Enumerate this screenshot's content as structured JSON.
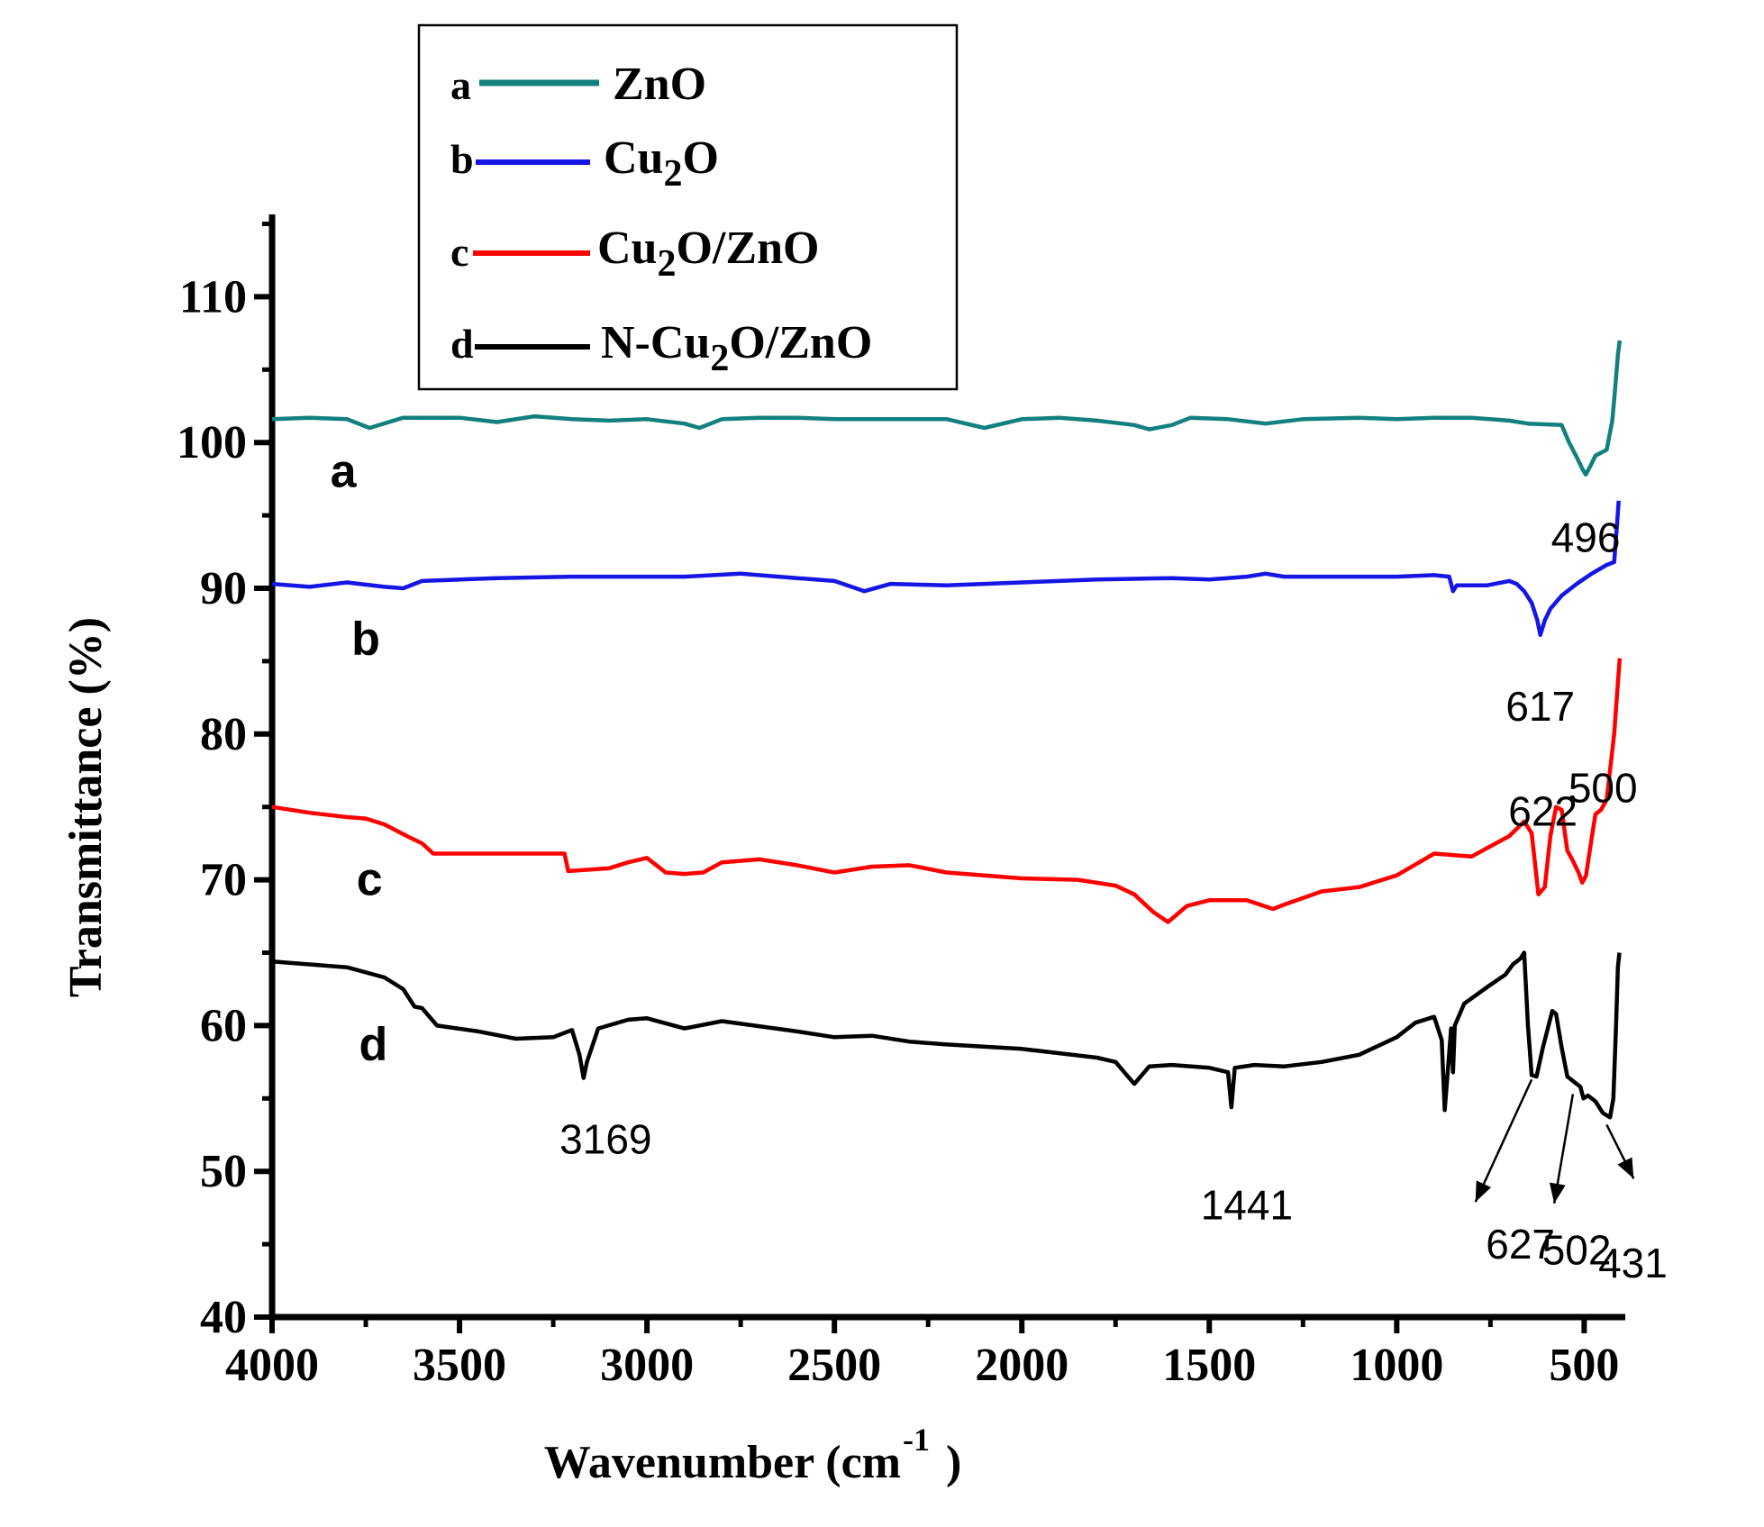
{
  "chart_data": {
    "type": "line",
    "xlabel": "Wavenumber (cm",
    "xlabel_sup": "-1",
    "xlabel_close": ")",
    "ylabel": "Transmittance (%)",
    "xlim": [
      4000,
      400
    ],
    "ylim": [
      40,
      115
    ],
    "x_ticks": [
      4000,
      3500,
      3000,
      2500,
      2000,
      1500,
      1000,
      500
    ],
    "y_ticks": [
      40,
      50,
      60,
      70,
      80,
      90,
      100,
      110
    ],
    "legend": {
      "position": "top-left",
      "entries": [
        {
          "letter": "a",
          "text": "ZnO"
        },
        {
          "letter": "b",
          "text": "Cu",
          "sub": "2",
          "rest": "O"
        },
        {
          "letter": "c",
          "text": "Cu",
          "sub": "2",
          "rest": "O/ZnO"
        },
        {
          "letter": "d",
          "text": "N-Cu",
          "sub": "2",
          "rest": "O/ZnO"
        }
      ]
    },
    "series": [
      {
        "name": "ZnO",
        "label": "a",
        "color": "#138080",
        "label_x": 3810,
        "label_y": 98.0,
        "points": [
          [
            4000,
            101.6
          ],
          [
            3900,
            101.7
          ],
          [
            3800,
            101.6
          ],
          [
            3740,
            101.0
          ],
          [
            3650,
            101.7
          ],
          [
            3500,
            101.7
          ],
          [
            3400,
            101.4
          ],
          [
            3300,
            101.8
          ],
          [
            3200,
            101.6
          ],
          [
            3100,
            101.5
          ],
          [
            3000,
            101.6
          ],
          [
            2900,
            101.3
          ],
          [
            2860,
            101.0
          ],
          [
            2800,
            101.6
          ],
          [
            2700,
            101.7
          ],
          [
            2600,
            101.7
          ],
          [
            2500,
            101.6
          ],
          [
            2400,
            101.6
          ],
          [
            2300,
            101.6
          ],
          [
            2200,
            101.6
          ],
          [
            2100,
            101.0
          ],
          [
            2000,
            101.6
          ],
          [
            1900,
            101.7
          ],
          [
            1800,
            101.5
          ],
          [
            1700,
            101.2
          ],
          [
            1660,
            100.9
          ],
          [
            1600,
            101.2
          ],
          [
            1550,
            101.7
          ],
          [
            1450,
            101.6
          ],
          [
            1350,
            101.3
          ],
          [
            1250,
            101.6
          ],
          [
            1100,
            101.7
          ],
          [
            1000,
            101.6
          ],
          [
            900,
            101.7
          ],
          [
            800,
            101.7
          ],
          [
            700,
            101.5
          ],
          [
            650,
            101.3
          ],
          [
            560,
            101.2
          ],
          [
            540,
            100.0
          ],
          [
            520,
            99.0
          ],
          [
            505,
            98.2
          ],
          [
            496,
            97.8
          ],
          [
            485,
            98.3
          ],
          [
            470,
            99.1
          ],
          [
            440,
            99.5
          ],
          [
            425,
            101.5
          ],
          [
            418,
            103.5
          ],
          [
            410,
            106.0
          ],
          [
            405,
            107.0
          ]
        ]
      },
      {
        "name": "Cu2O",
        "label": "b",
        "color": "#1515e6",
        "label_x": 3750,
        "label_y": 86.5,
        "points": [
          [
            4000,
            90.3
          ],
          [
            3900,
            90.1
          ],
          [
            3800,
            90.4
          ],
          [
            3700,
            90.1
          ],
          [
            3650,
            90.0
          ],
          [
            3600,
            90.5
          ],
          [
            3500,
            90.6
          ],
          [
            3400,
            90.7
          ],
          [
            3200,
            90.8
          ],
          [
            3000,
            90.8
          ],
          [
            2900,
            90.8
          ],
          [
            2750,
            91.0
          ],
          [
            2600,
            90.7
          ],
          [
            2500,
            90.5
          ],
          [
            2420,
            89.8
          ],
          [
            2350,
            90.3
          ],
          [
            2200,
            90.2
          ],
          [
            2000,
            90.4
          ],
          [
            1800,
            90.6
          ],
          [
            1600,
            90.7
          ],
          [
            1500,
            90.6
          ],
          [
            1400,
            90.8
          ],
          [
            1350,
            91.0
          ],
          [
            1300,
            90.8
          ],
          [
            1000,
            90.8
          ],
          [
            900,
            90.9
          ],
          [
            860,
            90.8
          ],
          [
            850,
            89.8
          ],
          [
            840,
            90.2
          ],
          [
            760,
            90.2
          ],
          [
            700,
            90.5
          ],
          [
            680,
            90.3
          ],
          [
            660,
            89.8
          ],
          [
            640,
            89.0
          ],
          [
            625,
            87.8
          ],
          [
            617,
            86.8
          ],
          [
            605,
            87.8
          ],
          [
            590,
            88.6
          ],
          [
            560,
            89.5
          ],
          [
            520,
            90.3
          ],
          [
            480,
            91.0
          ],
          [
            440,
            91.6
          ],
          [
            420,
            91.8
          ],
          [
            412,
            94.5
          ],
          [
            408,
            96.0
          ]
        ]
      },
      {
        "name": "Cu2O/ZnO",
        "label": "c",
        "color": "#ff0000",
        "label_x": 3740,
        "label_y": 70.0,
        "points": [
          [
            4000,
            75.0
          ],
          [
            3900,
            74.6
          ],
          [
            3800,
            74.3
          ],
          [
            3750,
            74.2
          ],
          [
            3700,
            73.8
          ],
          [
            3640,
            73.0
          ],
          [
            3600,
            72.5
          ],
          [
            3570,
            71.8
          ],
          [
            3500,
            71.8
          ],
          [
            3300,
            71.8
          ],
          [
            3220,
            71.8
          ],
          [
            3210,
            70.6
          ],
          [
            3100,
            70.8
          ],
          [
            3050,
            71.2
          ],
          [
            3000,
            71.5
          ],
          [
            2950,
            70.5
          ],
          [
            2900,
            70.4
          ],
          [
            2850,
            70.5
          ],
          [
            2800,
            71.2
          ],
          [
            2700,
            71.4
          ],
          [
            2600,
            71.0
          ],
          [
            2500,
            70.5
          ],
          [
            2400,
            70.9
          ],
          [
            2300,
            71.0
          ],
          [
            2200,
            70.5
          ],
          [
            2000,
            70.1
          ],
          [
            1850,
            70.0
          ],
          [
            1750,
            69.6
          ],
          [
            1700,
            69.0
          ],
          [
            1650,
            67.8
          ],
          [
            1610,
            67.1
          ],
          [
            1560,
            68.2
          ],
          [
            1500,
            68.6
          ],
          [
            1400,
            68.6
          ],
          [
            1330,
            68.0
          ],
          [
            1300,
            68.3
          ],
          [
            1200,
            69.2
          ],
          [
            1100,
            69.5
          ],
          [
            1000,
            70.3
          ],
          [
            940,
            71.2
          ],
          [
            900,
            71.8
          ],
          [
            800,
            71.6
          ],
          [
            700,
            73.0
          ],
          [
            660,
            74.0
          ],
          [
            640,
            73.2
          ],
          [
            622,
            69.0
          ],
          [
            605,
            69.5
          ],
          [
            590,
            73.0
          ],
          [
            575,
            75.0
          ],
          [
            560,
            74.8
          ],
          [
            545,
            72.0
          ],
          [
            530,
            71.3
          ],
          [
            515,
            70.5
          ],
          [
            505,
            69.8
          ],
          [
            495,
            70.3
          ],
          [
            485,
            72.0
          ],
          [
            470,
            74.5
          ],
          [
            455,
            74.8
          ],
          [
            440,
            75.5
          ],
          [
            420,
            80.0
          ],
          [
            410,
            83.5
          ],
          [
            405,
            85.2
          ]
        ]
      },
      {
        "name": "N-Cu2O/ZnO",
        "label": "d",
        "color": "#000000",
        "label_x": 3730,
        "label_y": 58.7,
        "points": [
          [
            4000,
            64.4
          ],
          [
            3800,
            64.0
          ],
          [
            3700,
            63.3
          ],
          [
            3650,
            62.5
          ],
          [
            3620,
            61.3
          ],
          [
            3600,
            61.2
          ],
          [
            3560,
            60.0
          ],
          [
            3450,
            59.6
          ],
          [
            3350,
            59.1
          ],
          [
            3250,
            59.2
          ],
          [
            3200,
            59.7
          ],
          [
            3180,
            58.0
          ],
          [
            3169,
            56.4
          ],
          [
            3160,
            57.5
          ],
          [
            3130,
            59.8
          ],
          [
            3050,
            60.4
          ],
          [
            3000,
            60.5
          ],
          [
            2900,
            59.8
          ],
          [
            2800,
            60.3
          ],
          [
            2600,
            59.6
          ],
          [
            2500,
            59.2
          ],
          [
            2400,
            59.3
          ],
          [
            2300,
            58.9
          ],
          [
            2200,
            58.7
          ],
          [
            2000,
            58.4
          ],
          [
            1900,
            58.1
          ],
          [
            1800,
            57.8
          ],
          [
            1750,
            57.5
          ],
          [
            1720,
            56.6
          ],
          [
            1700,
            56.0
          ],
          [
            1660,
            57.2
          ],
          [
            1600,
            57.3
          ],
          [
            1500,
            57.1
          ],
          [
            1450,
            56.8
          ],
          [
            1441,
            54.4
          ],
          [
            1432,
            57.1
          ],
          [
            1380,
            57.3
          ],
          [
            1300,
            57.2
          ],
          [
            1200,
            57.5
          ],
          [
            1100,
            58.0
          ],
          [
            1000,
            59.2
          ],
          [
            950,
            60.2
          ],
          [
            900,
            60.6
          ],
          [
            880,
            59.0
          ],
          [
            872,
            54.2
          ],
          [
            862,
            57.5
          ],
          [
            855,
            59.8
          ],
          [
            850,
            56.8
          ],
          [
            845,
            60.0
          ],
          [
            820,
            61.5
          ],
          [
            750,
            62.8
          ],
          [
            710,
            63.5
          ],
          [
            690,
            64.2
          ],
          [
            670,
            64.6
          ],
          [
            660,
            65.0
          ],
          [
            650,
            60.0
          ],
          [
            640,
            56.6
          ],
          [
            627,
            56.5
          ],
          [
            610,
            58.5
          ],
          [
            585,
            61.0
          ],
          [
            575,
            60.8
          ],
          [
            560,
            58.5
          ],
          [
            545,
            56.5
          ],
          [
            530,
            56.2
          ],
          [
            510,
            55.8
          ],
          [
            502,
            55.0
          ],
          [
            490,
            55.2
          ],
          [
            470,
            54.8
          ],
          [
            450,
            54.0
          ],
          [
            431,
            53.7
          ],
          [
            422,
            55.0
          ],
          [
            415,
            60.0
          ],
          [
            410,
            64.0
          ],
          [
            406,
            65.0
          ]
        ]
      }
    ],
    "annotations": [
      {
        "text": "496",
        "x": 496,
        "y": 93.5
      },
      {
        "text": "617",
        "x": 617,
        "y": 81.9
      },
      {
        "text": "622",
        "x": 610,
        "y": 74.7
      },
      {
        "text": "500",
        "x": 450,
        "y": 76.3
      },
      {
        "text": "3169",
        "x": 3110,
        "y": 52.2
      },
      {
        "text": "1441",
        "x": 1400,
        "y": 47.7
      },
      {
        "text": "627",
        "x": 670,
        "y": 45.0
      },
      {
        "text": "502",
        "x": 520,
        "y": 44.6
      },
      {
        "text": "431",
        "x": 370,
        "y": 43.7
      }
    ],
    "arrows": [
      {
        "from": [
          640,
          56.3
        ],
        "to": [
          790,
          47.9
        ]
      },
      {
        "from": [
          530,
          55.3
        ],
        "to": [
          580,
          47.8
        ]
      },
      {
        "from": [
          440,
          53.2
        ],
        "to": [
          368,
          49.5
        ]
      }
    ]
  }
}
